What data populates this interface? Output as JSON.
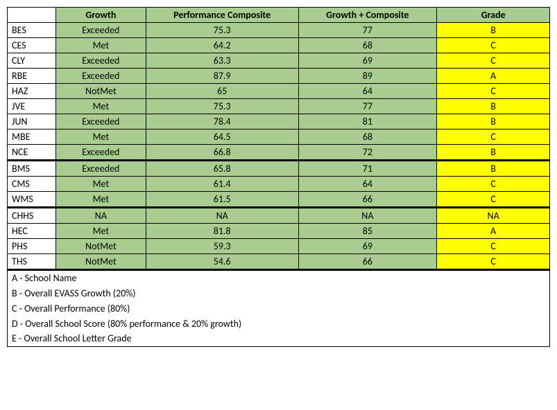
{
  "headers": {
    "blank": "",
    "growth": "Growth",
    "perf": "Performance Composite",
    "comp": "Growth + Composite",
    "grade": "Grade"
  },
  "colors": {
    "header_bg": "#a9cd90",
    "data_bg": "#a9cd90",
    "grade_bg": "#ffff00",
    "border": "#000000",
    "white": "#ffffff"
  },
  "sections": [
    {
      "rows": [
        {
          "school": "BES",
          "growth": "Exceeded",
          "perf": "75.3",
          "comp": "77",
          "grade": "B"
        },
        {
          "school": "CES",
          "growth": "Met",
          "perf": "64.2",
          "comp": "68",
          "grade": "C"
        },
        {
          "school": "CLY",
          "growth": "Exceeded",
          "perf": "63.3",
          "comp": "69",
          "grade": "C"
        },
        {
          "school": "RBE",
          "growth": "Exceeded",
          "perf": "87.9",
          "comp": "89",
          "grade": "A"
        },
        {
          "school": "HAZ",
          "growth": "NotMet",
          "perf": "65",
          "comp": "64",
          "grade": "C"
        },
        {
          "school": "JVE",
          "growth": "Met",
          "perf": "75.3",
          "comp": "77",
          "grade": "B"
        },
        {
          "school": "JUN",
          "growth": "Exceeded",
          "perf": "78.4",
          "comp": "81",
          "grade": "B"
        },
        {
          "school": "MBE",
          "growth": "Met",
          "perf": "64.5",
          "comp": "68",
          "grade": "C"
        },
        {
          "school": "NCE",
          "growth": "Exceeded",
          "perf": "66.8",
          "comp": "72",
          "grade": "B"
        }
      ]
    },
    {
      "rows": [
        {
          "school": "BMS",
          "growth": "Exceeded",
          "perf": "65.8",
          "comp": "71",
          "grade": "B"
        },
        {
          "school": "CMS",
          "growth": "Met",
          "perf": "61.4",
          "comp": "64",
          "grade": "C"
        },
        {
          "school": "WMS",
          "growth": "Met",
          "perf": "61.5",
          "comp": "66",
          "grade": "C"
        }
      ]
    },
    {
      "rows": [
        {
          "school": "CHHS",
          "growth": "NA",
          "perf": "NA",
          "comp": "NA",
          "grade": "NA"
        },
        {
          "school": "HEC",
          "growth": "Met",
          "perf": "81.8",
          "comp": "85",
          "grade": "A"
        },
        {
          "school": "PHS",
          "growth": "NotMet",
          "perf": "59.3",
          "comp": "69",
          "grade": "C"
        },
        {
          "school": "THS",
          "growth": "NotMet",
          "perf": "54.6",
          "comp": "66",
          "grade": "C"
        }
      ]
    }
  ],
  "legend": [
    "A - School Name",
    "B - Overall EVASS Growth (20%)",
    "C - Overall Performance (80%)",
    "D - Overall School Score (80% performance & 20% growth)",
    "E - Overall School Letter Grade"
  ]
}
